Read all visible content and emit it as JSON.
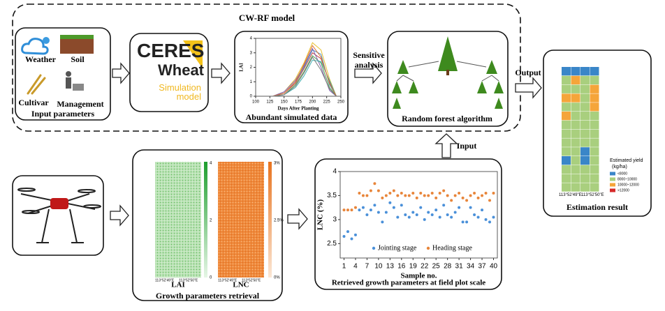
{
  "title": "CW-RF model",
  "input_parameters": {
    "weather": "Weather",
    "soil": "Soil",
    "cultivar": "Cultivar",
    "management": "Management",
    "label": "Input parameters"
  },
  "ceres": {
    "line1": "CERES",
    "line2": "Wheat",
    "line3": "Simulation",
    "line4": "model"
  },
  "simulated": {
    "label": "Abundant simulated data",
    "chart": {
      "type": "line",
      "x_label": "Days After Planting",
      "y_label": "LAI",
      "xlim": [
        100,
        250
      ],
      "xticks": [
        100,
        125,
        150,
        175,
        200,
        225,
        250
      ],
      "ylim": [
        0,
        4
      ],
      "yticks": [
        0,
        1,
        2,
        3,
        4
      ],
      "x": [
        130,
        150,
        170,
        185,
        200,
        215,
        230,
        242
      ],
      "series": [
        {
          "color": "#e8c030",
          "values": [
            0,
            0.3,
            1.2,
            2.3,
            3.7,
            3.2,
            1.2,
            0
          ]
        },
        {
          "color": "#4a90c0",
          "values": [
            0,
            0.2,
            1.0,
            2.0,
            3.2,
            2.9,
            0.8,
            0
          ]
        },
        {
          "color": "#c04040",
          "values": [
            0,
            0.2,
            0.9,
            1.9,
            3.0,
            2.6,
            1.0,
            0
          ]
        },
        {
          "color": "#50a050",
          "values": [
            0,
            0.1,
            0.8,
            1.7,
            2.8,
            2.3,
            0.6,
            0
          ]
        },
        {
          "color": "#8060b0",
          "values": [
            0,
            0.3,
            1.1,
            2.1,
            3.3,
            2.0,
            0.4,
            0
          ]
        },
        {
          "color": "#40b0b0",
          "values": [
            0,
            0.1,
            0.6,
            1.4,
            2.5,
            2.4,
            1.1,
            0
          ]
        },
        {
          "color": "#e07030",
          "values": [
            0,
            0.2,
            1.0,
            2.2,
            3.5,
            2.7,
            0.9,
            0
          ]
        },
        {
          "color": "#7a7a7a",
          "values": [
            0,
            0.1,
            0.7,
            1.6,
            2.7,
            1.8,
            0.5,
            0
          ]
        }
      ]
    }
  },
  "sensitive_analysis": [
    "Sensitive",
    "analysis"
  ],
  "random_forest": {
    "label": "Random forest algorithm"
  },
  "output": "Output",
  "input": "Input",
  "estimation": {
    "label": "Estimation result",
    "legend_title": [
      "Estimated yield",
      "(kg/ha)"
    ],
    "classes": [
      {
        "label": "<8000",
        "color": "#3a86c8"
      },
      {
        "label": "8000~10000",
        "color": "#a9cf7e"
      },
      {
        "label": "10000~12000",
        "color": "#f5a53a"
      },
      {
        "label": ">12000",
        "color": "#d62a2a"
      }
    ],
    "x_labels": [
      "113°52'49\"E",
      "113°52'50\"E"
    ]
  },
  "retrieval": {
    "label": "Growth parameters retrieval",
    "maps": [
      {
        "name": "LAI",
        "colorbar": [
          "4",
          "2",
          "0"
        ]
      },
      {
        "name": "LNC",
        "colorbar": [
          "3%",
          "2.5%",
          "0%"
        ]
      }
    ],
    "x_labels": [
      "113°52'49\"E",
      "113°52'50\"E"
    ]
  },
  "retrieved": {
    "label": "Retrieved growth parameters at field plot scale",
    "chart": {
      "type": "scatter",
      "x_label": "Sample no.",
      "y_label": "LNC (%)",
      "xlim": [
        0,
        41
      ],
      "xticks": [
        1,
        4,
        7,
        10,
        13,
        16,
        19,
        22,
        25,
        28,
        31,
        34,
        37,
        40
      ],
      "ylim": [
        2.2,
        4
      ],
      "yticks": [
        {
          "value": 2.5,
          "label": "2.5"
        },
        3,
        {
          "value": 3.5,
          "label": "3.5"
        },
        4
      ],
      "x": [
        1,
        2,
        3,
        4,
        5,
        6,
        7,
        8,
        9,
        10,
        11,
        12,
        13,
        14,
        15,
        16,
        17,
        18,
        19,
        20,
        21,
        22,
        23,
        24,
        25,
        26,
        27,
        28,
        29,
        30,
        31,
        32,
        33,
        34,
        35,
        36,
        37,
        38,
        39,
        40
      ],
      "series": [
        {
          "name": "Jointing stage",
          "color": "#4a90d9",
          "values": [
            2.65,
            2.75,
            2.6,
            2.68,
            3.2,
            3.25,
            3.1,
            3.2,
            3.3,
            3.15,
            2.95,
            3.15,
            3.35,
            3.25,
            3.05,
            3.3,
            3.1,
            3.05,
            3.15,
            3.1,
            3.25,
            3.0,
            3.15,
            3.1,
            3.2,
            3.05,
            3.3,
            3.1,
            3.05,
            3.15,
            3.25,
            2.95,
            2.95,
            3.25,
            3.1,
            3.05,
            3.2,
            3.0,
            2.95,
            3.05
          ]
        },
        {
          "name": "Heading stage",
          "color": "#e8853a",
          "values": [
            3.2,
            3.2,
            3.2,
            3.25,
            3.55,
            3.5,
            3.5,
            3.6,
            3.75,
            3.6,
            3.45,
            3.5,
            3.55,
            3.6,
            3.5,
            3.55,
            3.5,
            3.5,
            3.55,
            3.45,
            3.55,
            3.5,
            3.5,
            3.55,
            3.45,
            3.55,
            3.6,
            3.5,
            3.4,
            3.5,
            3.55,
            3.45,
            3.4,
            3.5,
            3.55,
            3.45,
            3.5,
            3.55,
            3.4,
            3.55
          ]
        }
      ]
    }
  }
}
